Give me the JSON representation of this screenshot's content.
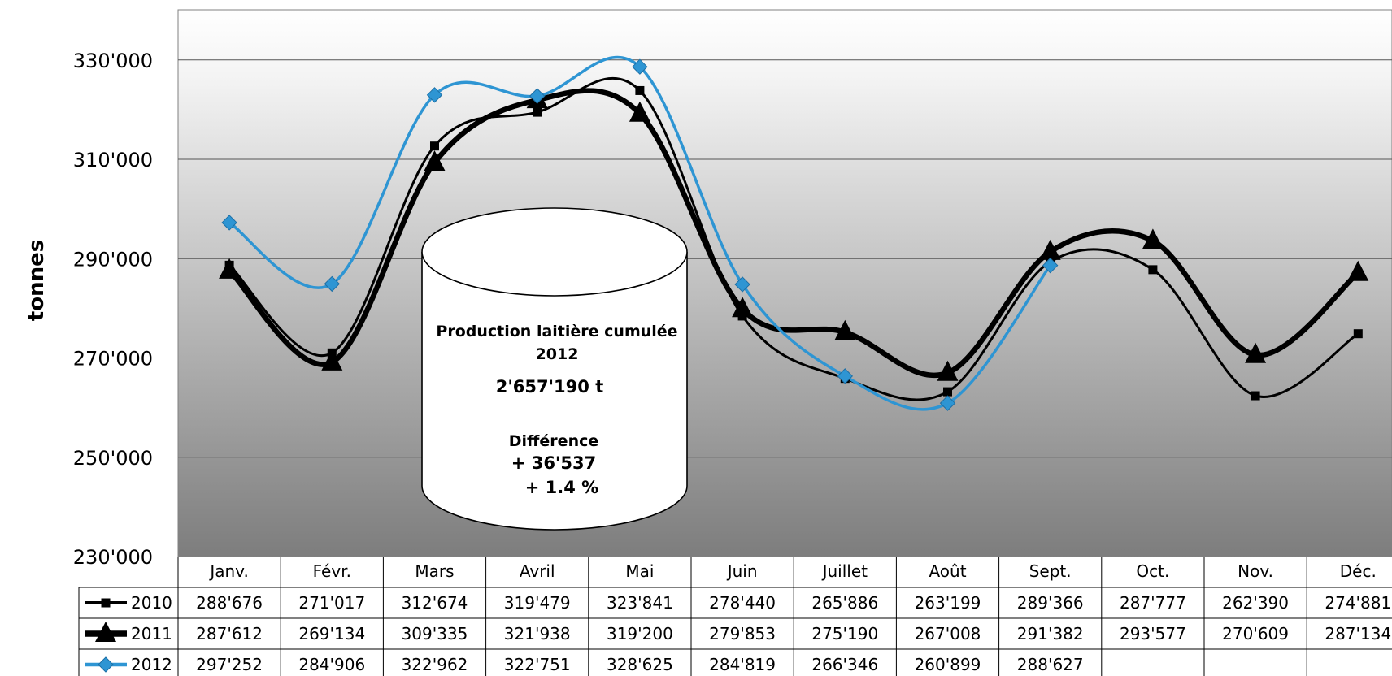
{
  "chart_data": {
    "type": "line",
    "ylabel": "tonnes",
    "ylim": [
      230000,
      340000
    ],
    "yticks": [
      "230'000",
      "250'000",
      "270'000",
      "290'000",
      "310'000",
      "330'000"
    ],
    "ytick_values": [
      230000,
      250000,
      270000,
      290000,
      310000,
      330000
    ],
    "categories": [
      "Janv.",
      "Févr.",
      "Mars",
      "Avril",
      "Mai",
      "Juin",
      "Juillet",
      "Août",
      "Sept.",
      "Oct.",
      "Nov.",
      "Déc."
    ],
    "series": [
      {
        "name": "2010",
        "color": "#000000",
        "marker": "square",
        "values": [
          288676,
          271017,
          312674,
          319479,
          323841,
          278440,
          265886,
          263199,
          289366,
          287777,
          262390,
          274881
        ],
        "labels": [
          "288'676",
          "271'017",
          "312'674",
          "319'479",
          "323'841",
          "278'440",
          "265'886",
          "263'199",
          "289'366",
          "287'777",
          "262'390",
          "274'881"
        ]
      },
      {
        "name": "2011",
        "color": "#000000",
        "marker": "triangle",
        "values": [
          287612,
          269134,
          309335,
          321938,
          319200,
          279853,
          275190,
          267008,
          291382,
          293577,
          270609,
          287134
        ],
        "labels": [
          "287'612",
          "269'134",
          "309'335",
          "321'938",
          "319'200",
          "279'853",
          "275'190",
          "267'008",
          "291'382",
          "293'577",
          "270'609",
          "287'134"
        ]
      },
      {
        "name": "2012",
        "color": "#2E95D3",
        "marker": "diamond",
        "values": [
          297252,
          284906,
          322962,
          322751,
          328625,
          284819,
          266346,
          260899,
          288627,
          null,
          null,
          null
        ],
        "labels": [
          "297'252",
          "284'906",
          "322'962",
          "322'751",
          "328'625",
          "284'819",
          "266'346",
          "260'899",
          "288'627",
          "",
          "",
          ""
        ]
      }
    ],
    "annotation": {
      "line1": "Production laitière cumulée",
      "line2": "2012",
      "line3": "2'657'190 t",
      "line4": "Différence",
      "line5": "+ 36'537",
      "line6": "+ 1.4 %"
    },
    "legend": "data-table-left",
    "grid": true
  }
}
